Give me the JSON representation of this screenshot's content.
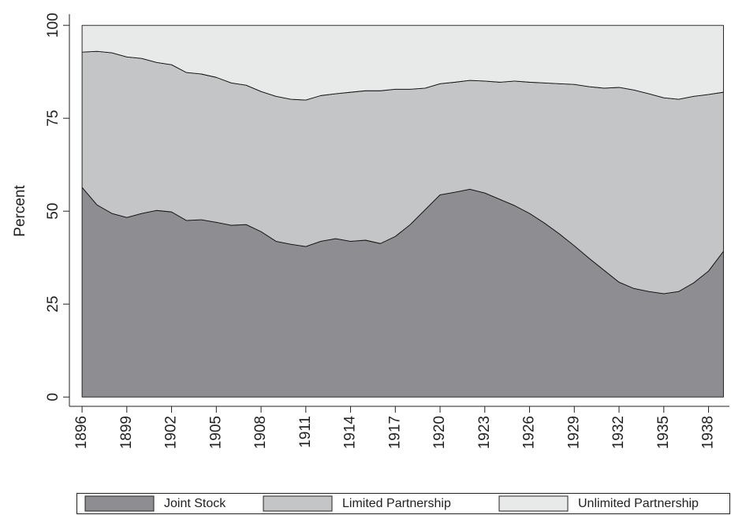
{
  "chart_data": {
    "type": "stacked_area",
    "y_label": "Percent",
    "x": [
      1896,
      1897,
      1898,
      1899,
      1900,
      1901,
      1902,
      1903,
      1904,
      1905,
      1906,
      1907,
      1908,
      1909,
      1910,
      1911,
      1912,
      1913,
      1914,
      1915,
      1916,
      1917,
      1918,
      1919,
      1920,
      1921,
      1922,
      1923,
      1924,
      1925,
      1926,
      1927,
      1928,
      1929,
      1930,
      1931,
      1932,
      1933,
      1934,
      1935,
      1936,
      1937,
      1938,
      1939
    ],
    "series": [
      {
        "name": "Joint Stock",
        "color": "#8e8e92",
        "values": [
          56.4,
          51.7,
          49.4,
          48.3,
          49.4,
          50.2,
          49.8,
          47.5,
          47.7,
          47.0,
          46.2,
          46.4,
          44.5,
          41.9,
          41.1,
          40.5,
          41.9,
          42.6,
          41.9,
          42.2,
          41.3,
          43.2,
          46.4,
          50.4,
          54.4,
          55.1,
          55.9,
          54.9,
          53.2,
          51.5,
          49.4,
          46.8,
          43.9,
          40.7,
          37.3,
          34.1,
          30.9,
          29.2,
          28.4,
          27.8,
          28.4,
          30.7,
          33.9,
          39.2
        ]
      },
      {
        "name": "Limited Partnership",
        "color": "#c4c5c7",
        "values": [
          36.4,
          41.3,
          43.2,
          43.2,
          41.7,
          39.8,
          39.6,
          39.8,
          39.2,
          39.0,
          38.3,
          37.5,
          37.7,
          39.0,
          39.0,
          39.4,
          39.2,
          39.0,
          40.1,
          40.2,
          41.1,
          39.6,
          36.4,
          32.7,
          29.9,
          29.6,
          29.3,
          30.1,
          31.5,
          33.5,
          35.3,
          37.7,
          40.4,
          43.4,
          46.2,
          49.0,
          52.4,
          53.4,
          53.2,
          52.7,
          51.7,
          50.2,
          47.5,
          42.8
        ]
      },
      {
        "name": "Unlimited Partnership",
        "color": "#e8e9e9",
        "values": [
          7.2,
          7.0,
          7.4,
          8.5,
          8.9,
          10.0,
          10.6,
          12.7,
          13.1,
          14.0,
          15.5,
          16.1,
          17.8,
          19.1,
          19.9,
          20.1,
          18.9,
          18.4,
          18.0,
          17.6,
          17.6,
          17.2,
          17.2,
          16.9,
          15.7,
          15.3,
          14.8,
          15.0,
          15.3,
          15.0,
          15.3,
          15.5,
          15.7,
          15.9,
          16.5,
          16.9,
          16.7,
          17.4,
          18.4,
          19.5,
          19.9,
          19.1,
          18.6,
          18.0
        ]
      }
    ],
    "xlim": [
      1895.15,
      1939.4
    ],
    "xticks": [
      1896,
      1899,
      1902,
      1905,
      1908,
      1911,
      1914,
      1917,
      1920,
      1923,
      1926,
      1929,
      1932,
      1935,
      1938
    ],
    "ylim": [
      -2.5,
      103
    ],
    "yticks": [
      0,
      25,
      50,
      75,
      100
    ],
    "legend": "bottom"
  }
}
